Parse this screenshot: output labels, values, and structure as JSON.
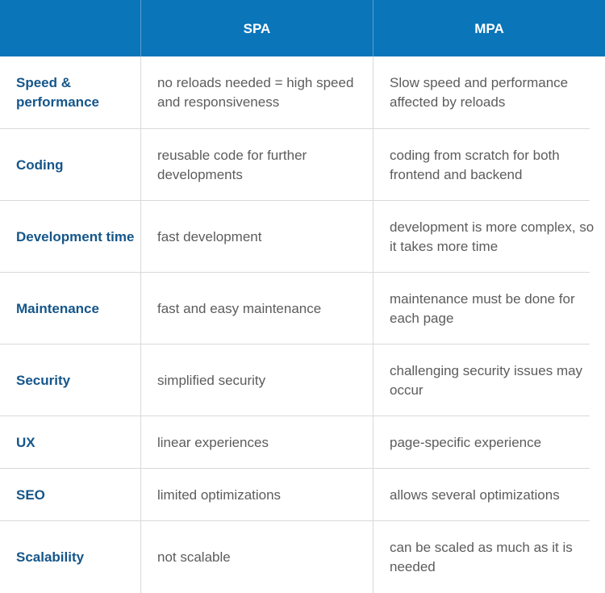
{
  "header": {
    "col_spa": "SPA",
    "col_mpa": "MPA"
  },
  "colors": {
    "header_bg": "#0a75b8",
    "feature_text": "#15568a",
    "body_text": "#5c5c5c",
    "grid_line": "#d9d9d9"
  },
  "rows": [
    {
      "feature": "Speed & performance",
      "spa": "no reloads needed = high speed and responsiveness",
      "mpa": "Slow speed and performance affected by reloads"
    },
    {
      "feature": "Coding",
      "spa": "reusable code for further developments",
      "mpa": "coding from scratch for both frontend and backend"
    },
    {
      "feature": "Development time",
      "spa": "fast development",
      "mpa": "development is more complex, so it takes more time"
    },
    {
      "feature": "Maintenance",
      "spa": "fast and easy maintenance",
      "mpa": "maintenance must be done for each page"
    },
    {
      "feature": "Security",
      "spa": "simplified security",
      "mpa": "challenging security issues may occur"
    },
    {
      "feature": "UX",
      "spa": "linear experiences",
      "mpa": "page-specific experience"
    },
    {
      "feature": "SEO",
      "spa": "limited optimizations",
      "mpa": "allows several optimizations"
    },
    {
      "feature": "Scalability",
      "spa": "not scalable",
      "mpa": "can be scaled as much as it is needed"
    }
  ]
}
